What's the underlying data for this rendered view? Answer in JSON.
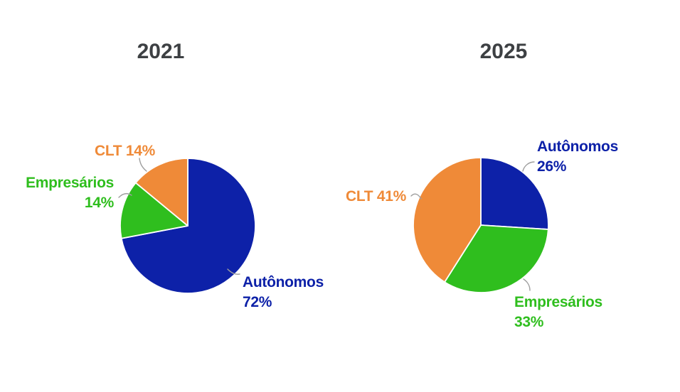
{
  "page": {
    "background": "#ffffff",
    "title_color": "#3d4043",
    "leader_line_color": "#9e9e9e",
    "slice_border_color": "#ffffff"
  },
  "chart_data": [
    {
      "type": "pie",
      "title": "2021",
      "categories": [
        "Autônomos",
        "Empresários",
        "CLT"
      ],
      "values": [
        72,
        14,
        14
      ],
      "colors": [
        "#0d21a8",
        "#2fbe1e",
        "#ef8a38"
      ],
      "unit": "%",
      "start_angle_deg": 0,
      "direction": "clockwise",
      "legend": "none",
      "labels_shown": [
        "Autônomos 72%",
        "Empresários 14%",
        "CLT 14%"
      ]
    },
    {
      "type": "pie",
      "title": "2025",
      "categories": [
        "Autônomos",
        "Empresários",
        "CLT"
      ],
      "values": [
        26,
        33,
        41
      ],
      "colors": [
        "#0d21a8",
        "#2fbe1e",
        "#ef8a38"
      ],
      "unit": "%",
      "start_angle_deg": 0,
      "direction": "clockwise",
      "legend": "none",
      "labels_shown": [
        "Autônomos 26%",
        "Empresários 33%",
        "CLT 41%"
      ]
    }
  ]
}
